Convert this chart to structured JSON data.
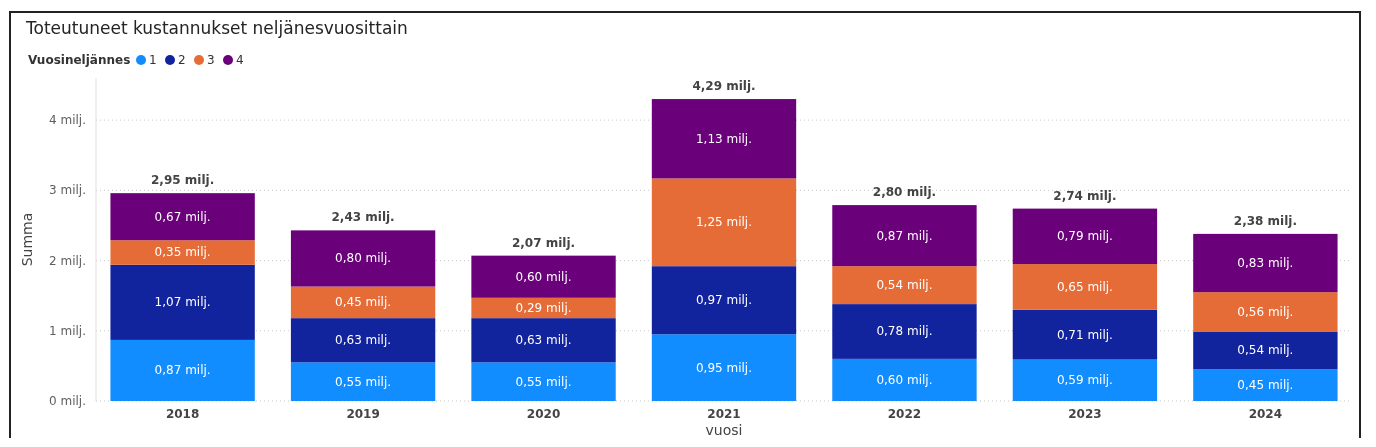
{
  "chart_data": {
    "type": "bar",
    "stacked": true,
    "title": "Toteutuneet kustannukset neljänesvuosittain",
    "xlabel": "vuosi",
    "ylabel": "Summa",
    "legend_title": "Vuosineljännes",
    "legend": "top left",
    "grid": "y",
    "categories": [
      "2018",
      "2019",
      "2020",
      "2021",
      "2022",
      "2023",
      "2024"
    ],
    "ylim": [
      0,
      4.6
    ],
    "yticks": [
      {
        "value": 0,
        "label": "0 milj."
      },
      {
        "value": 1,
        "label": "1 milj."
      },
      {
        "value": 2,
        "label": "2 milj."
      },
      {
        "value": 3,
        "label": "3 milj."
      },
      {
        "value": 4,
        "label": "4 milj."
      }
    ],
    "series": [
      {
        "name": "1",
        "color": "#118dff",
        "values": [
          0.87,
          0.55,
          0.55,
          0.95,
          0.6,
          0.59,
          0.45
        ],
        "value_labels": [
          "0,87 milj.",
          "0,55 milj.",
          "0,55 milj.",
          "0,95 milj.",
          "0,60 milj.",
          "0,59 milj.",
          "0,45 milj."
        ]
      },
      {
        "name": "2",
        "color": "#12239e",
        "values": [
          1.07,
          0.63,
          0.63,
          0.97,
          0.78,
          0.71,
          0.54
        ],
        "value_labels": [
          "1,07 milj.",
          "0,63 milj.",
          "0,63 milj.",
          "0,97 milj.",
          "0,78 milj.",
          "0,71 milj.",
          "0,54 milj."
        ]
      },
      {
        "name": "3",
        "color": "#e66c37",
        "values": [
          0.35,
          0.45,
          0.29,
          1.25,
          0.54,
          0.65,
          0.56
        ],
        "value_labels": [
          "0,35 milj.",
          "0,45 milj.",
          "0,29 milj.",
          "1,25 milj.",
          "0,54 milj.",
          "0,65 milj.",
          "0,56 milj."
        ]
      },
      {
        "name": "4",
        "color": "#6b007b",
        "values": [
          0.67,
          0.8,
          0.6,
          1.13,
          0.87,
          0.79,
          0.83
        ],
        "value_labels": [
          "0,67 milj.",
          "0,80 milj.",
          "0,60 milj.",
          "1,13 milj.",
          "0,87 milj.",
          "0,79 milj.",
          "0,83 milj."
        ]
      }
    ],
    "totals": [
      "2,95 milj.",
      "2,43 milj.",
      "2,07 milj.",
      "4,29 milj.",
      "2,80 milj.",
      "2,74 milj.",
      "2,38 milj."
    ]
  }
}
